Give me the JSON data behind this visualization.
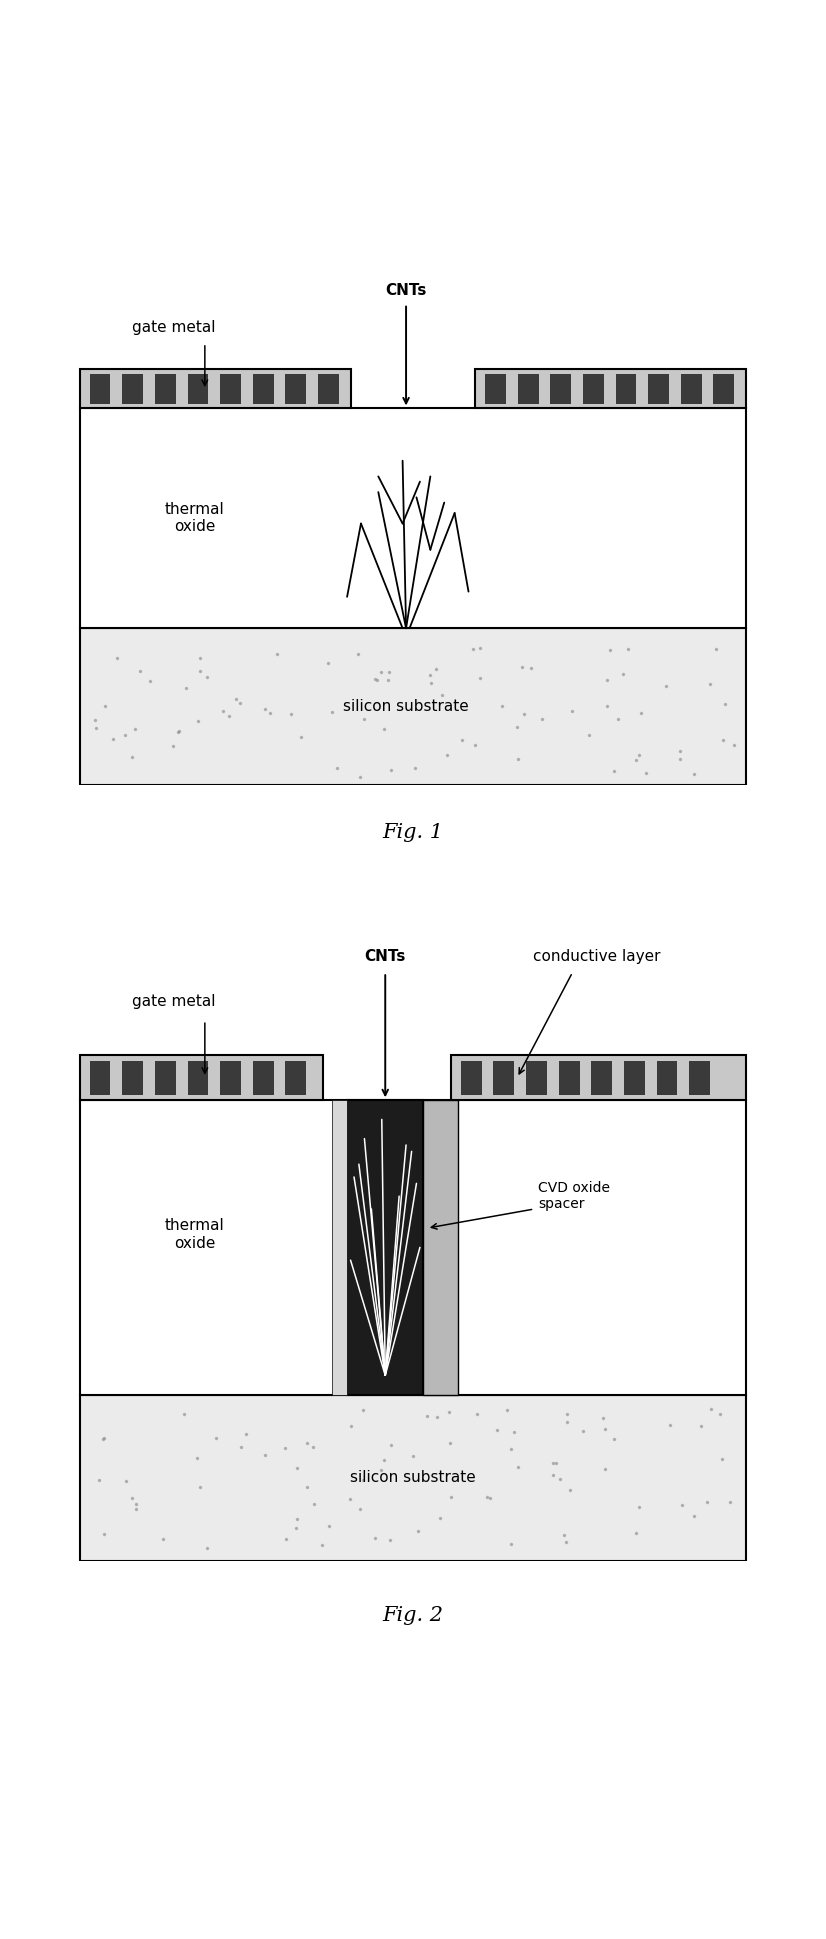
{
  "fig1": {
    "title": "Fig. 1",
    "labels": {
      "gate_metal": "gate metal",
      "cnts": "CNTs",
      "thermal_oxide": "thermal\noxide",
      "silicon_substrate": "silicon substrate"
    }
  },
  "fig2": {
    "title": "Fig. 2",
    "labels": {
      "gate_metal": "gate metal",
      "cnts": "CNTs",
      "thermal_oxide": "thermal\noxide",
      "silicon_substrate": "silicon substrate",
      "conductive_layer": "conductive layer",
      "cvd_oxide": "CVD oxide\nspacer"
    }
  },
  "colors": {
    "white": "#ffffff",
    "black": "#000000",
    "gate_metal_face": "#c8c8c8",
    "gate_metal_stripe": "#3a3a3a",
    "silicon_face": "#ebebeb",
    "silicon_dot": "#909090",
    "oxide_white": "#ffffff",
    "trench_dark": "#1c1c1c",
    "cvd_gray": "#b8b8b8",
    "light_shade": "#d8d8d8"
  }
}
